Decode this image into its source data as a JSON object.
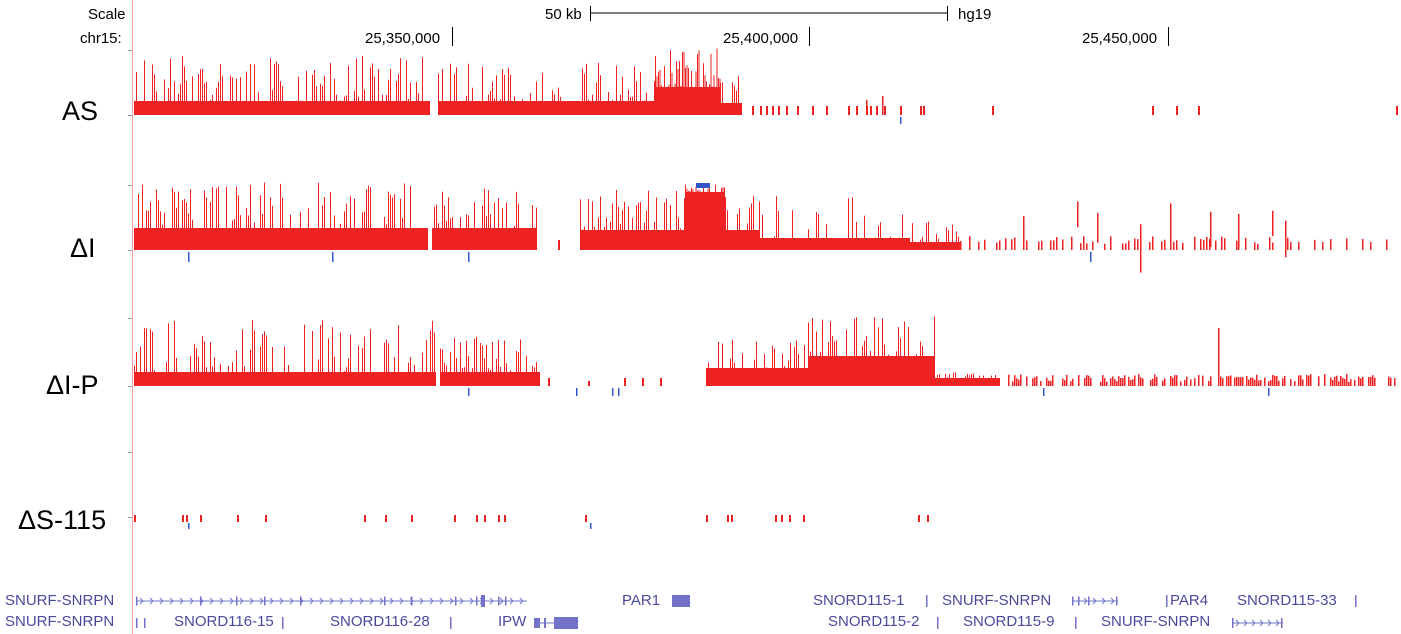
{
  "header": {
    "scale_label": "Scale",
    "chrom_label": "chr15:",
    "scalebar_label": "50 kb",
    "assembly": "hg19",
    "ticks": [
      "25,350,000",
      "25,400,000",
      "25,450,000"
    ]
  },
  "tracks": [
    {
      "label": "AS"
    },
    {
      "label": "ΔI"
    },
    {
      "label": "ΔI-P"
    },
    {
      "label": "ΔS-115"
    }
  ],
  "genes": {
    "row1": [
      "SNURF-SNRPN",
      "PAR1",
      "SNORD115-1",
      "SNURF-SNRPN",
      "PAR4",
      "SNORD115-33"
    ],
    "row2": [
      "SNURF-SNRPN",
      "SNORD116-15",
      "SNORD116-28",
      "IPW",
      "SNORD115-2",
      "SNORD115-9",
      "SNURF-SNRPN"
    ]
  },
  "colors": {
    "signal": "#ee2222",
    "minus_strand": "#3355cc",
    "gene": "#7272c8",
    "gene_text": "#4a4a9c",
    "guide_line": "#f2a0a0"
  }
}
